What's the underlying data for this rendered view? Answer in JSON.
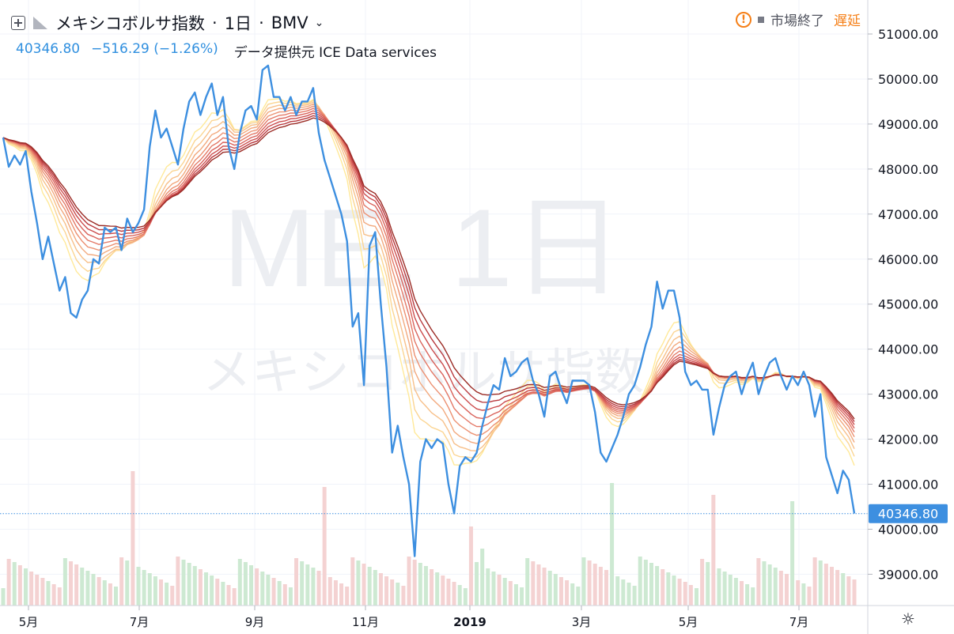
{
  "header": {
    "title": "メキシコボルサ指数",
    "interval": "1日",
    "exchange": "BMV"
  },
  "quote": {
    "last": "40346.80",
    "change": "−516.29 (−1.26%)",
    "source": "データ提供元 ICE Data services"
  },
  "status": {
    "warning_icon": "!",
    "market": "市場終了",
    "delay": "遅延"
  },
  "watermark": {
    "main": "ME, 1日",
    "sub": "メキシコボルサ指数"
  },
  "colors": {
    "price_line": "#3d8fe0",
    "ribbon": [
      "#ffe999",
      "#fbd592",
      "#f7c08a",
      "#f2a97e",
      "#ec9172",
      "#e47967",
      "#d9625b",
      "#cc4d4e",
      "#b8393e",
      "#9c2d27"
    ],
    "vol_up": "#cde9d2",
    "vol_down": "#f4d2d2",
    "last_label_bg": "#3d8fe0",
    "grid": "#f0f3fa"
  },
  "chart_data": {
    "type": "line",
    "title": "メキシコボルサ指数",
    "ylim": [
      38300,
      51600
    ],
    "yticks": [
      "51000.00",
      "50000.00",
      "49000.00",
      "48000.00",
      "47000.00",
      "46000.00",
      "45000.00",
      "44000.00",
      "43000.00",
      "42000.00",
      "41000.00",
      "40000.00",
      "39000.00"
    ],
    "xticks": [
      "5月",
      "7月",
      "9月",
      "11月",
      "2019",
      "3月",
      "5月",
      "7月"
    ],
    "last_value": 40346.8,
    "last_label": "40346.80",
    "series": [
      {
        "values": [
          48700,
          48050,
          48300,
          48100,
          48400,
          47500,
          46800,
          46000,
          46500,
          45900,
          45300,
          45600,
          44800,
          44700,
          45100,
          45300,
          46000,
          45900,
          46700,
          46600,
          46700,
          46200,
          46900,
          46600,
          46800,
          47100,
          48500,
          49300,
          48700,
          48900,
          48500,
          48100,
          48900,
          49500,
          49700,
          49200,
          49600,
          49900,
          49200,
          49600,
          48500,
          48000,
          48800,
          49300,
          49400,
          49100,
          50200,
          50300,
          49600,
          49600,
          49300,
          49600,
          49200,
          49500,
          49500,
          49800,
          48800,
          48200,
          47800,
          47400,
          47000,
          46400,
          44500,
          44800,
          43200,
          46300,
          46600,
          45000,
          43600,
          41700,
          42300,
          41600,
          41000,
          39400,
          41500,
          42000,
          41800,
          42000,
          41900,
          41000,
          40350,
          41400,
          41600,
          41500,
          41700,
          42300,
          42800,
          43200,
          43100,
          43800,
          43400,
          43500,
          43700,
          43800,
          43300,
          43000,
          42500,
          43400,
          43500,
          43100,
          42800,
          43300,
          43300,
          43300,
          43200,
          42600,
          41700,
          41500,
          41800,
          42100,
          42500,
          43000,
          43200,
          43600,
          44100,
          44500,
          45500,
          44900,
          45300,
          45300,
          44700,
          43500,
          43200,
          43300,
          43100,
          43100,
          42100,
          42700,
          43200,
          43400,
          43500,
          43000,
          43400,
          43700,
          43000,
          43400,
          43700,
          43800,
          43400,
          43100,
          43400,
          43200,
          43500,
          43200,
          42500,
          43000,
          41600,
          41200,
          40800,
          41300,
          41100,
          40350
        ]
      }
    ]
  }
}
